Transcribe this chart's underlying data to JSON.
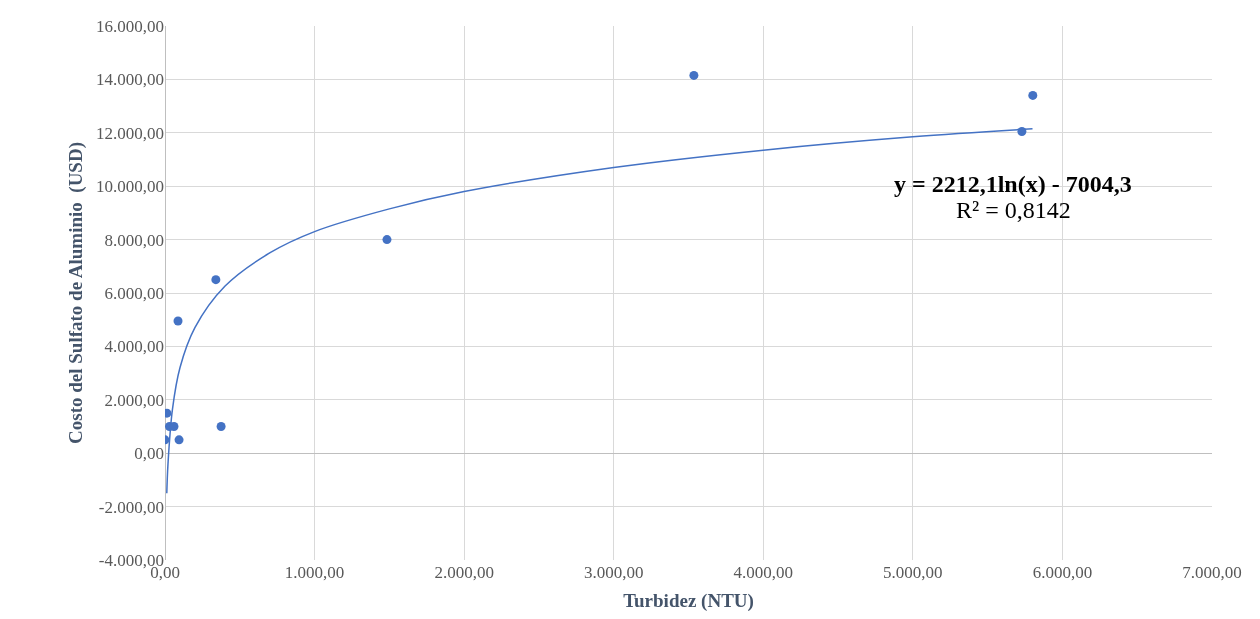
{
  "chart_data": {
    "type": "scatter",
    "xlabel": "Turbidez (NTU)",
    "ylabel": "Costo del Sulfato de Aluminio  (USD)",
    "x": [
      0,
      13,
      30,
      60,
      87,
      94,
      340,
      375,
      1484,
      3536,
      5729,
      5802
    ],
    "series": [
      {
        "color": "#4472c4",
        "marker": "circle",
        "values": [
          500,
          1500,
          1000,
          1000,
          4950,
          500,
          6500,
          1000,
          8000,
          14150,
          12050,
          13400
        ]
      },
      {
        "type": "line",
        "color": "#4472c4",
        "marker": "none",
        "line_style": "solid",
        "x": [
          12,
          20,
          50,
          100,
          200,
          400,
          700,
          1000,
          1500,
          2000,
          3000,
          4000,
          5000,
          5800
        ],
        "values": [
          -1500,
          -400,
          1650,
          3200,
          4700,
          6250,
          7500,
          8300,
          9150,
          9800,
          10700,
          11350,
          11850,
          12150
        ]
      }
    ],
    "xlim": [
      0,
      7000
    ],
    "ylim": [
      -4000,
      16000
    ],
    "xticks": [
      {
        "value": 0,
        "label": "0,00"
      },
      {
        "value": 1000,
        "label": "1.000,00"
      },
      {
        "value": 2000,
        "label": "2.000,00"
      },
      {
        "value": 3000,
        "label": "3.000,00"
      },
      {
        "value": 4000,
        "label": "4.000,00"
      },
      {
        "value": 5000,
        "label": "5.000,00"
      },
      {
        "value": 6000,
        "label": "6.000,00"
      },
      {
        "value": 7000,
        "label": "7.000,00"
      }
    ],
    "yticks": [
      {
        "value": -4000,
        "label": "-4.000,00"
      },
      {
        "value": -2000,
        "label": "-2.000,00"
      },
      {
        "value": 0,
        "label": "0,00"
      },
      {
        "value": 2000,
        "label": "2.000,00"
      },
      {
        "value": 4000,
        "label": "4.000,00"
      },
      {
        "value": 6000,
        "label": "6.000,00"
      },
      {
        "value": 8000,
        "label": "8.000,00"
      },
      {
        "value": 10000,
        "label": "10.000,00"
      },
      {
        "value": 12000,
        "label": "12.000,00"
      },
      {
        "value": 14000,
        "label": "14.000,00"
      },
      {
        "value": 16000,
        "label": "16.000,00"
      }
    ],
    "grid": true,
    "legend": false,
    "annotations": [
      "y = 2212,1ln(x) - 7004,3",
      "R² = 0,8142"
    ]
  }
}
